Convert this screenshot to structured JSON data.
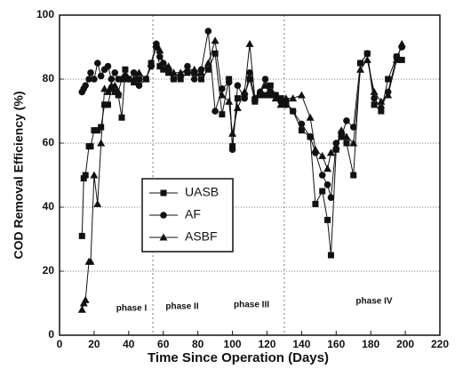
{
  "chart_data": {
    "type": "line",
    "xlabel": "Time Since Operation (Days)",
    "ylabel": "COD Removal Efficiency (%)",
    "x": [
      13,
      14,
      15,
      17,
      18,
      20,
      22,
      24,
      26,
      28,
      30,
      32,
      34,
      36,
      38,
      40,
      43,
      46,
      50,
      53,
      56,
      58,
      60,
      63,
      66,
      70,
      74,
      78,
      82,
      86,
      90,
      94,
      98,
      100,
      103,
      107,
      110,
      113,
      116,
      119,
      122,
      125,
      128,
      131,
      135,
      140,
      145,
      148,
      152,
      155,
      157,
      160,
      163,
      166,
      170,
      174,
      178,
      182,
      186,
      190,
      195,
      198
    ],
    "series": [
      {
        "name": "UASB",
        "color": "#111111",
        "marker": "square",
        "values": [
          31,
          49,
          50,
          59,
          59,
          64,
          64,
          65,
          72,
          72,
          77,
          76,
          75,
          68,
          83,
          80,
          79,
          80,
          80,
          85,
          90,
          84,
          83,
          82,
          80,
          80,
          82,
          82,
          80,
          83,
          88,
          69,
          80,
          59,
          74,
          75,
          80,
          73,
          75,
          75,
          78,
          75,
          74,
          73,
          70,
          64,
          62,
          41,
          45,
          36,
          25,
          58,
          63,
          60,
          50,
          85,
          88,
          72,
          70,
          80,
          87,
          86
        ]
      },
      {
        "name": "AF",
        "color": "#111111",
        "marker": "circle",
        "values": [
          76,
          77,
          78,
          80,
          82,
          80,
          85,
          81,
          83,
          84,
          80,
          82,
          80,
          80,
          81,
          80,
          82,
          78,
          80,
          84,
          91,
          87,
          85,
          83,
          80,
          81,
          84,
          80,
          83,
          95,
          70,
          77,
          79,
          58,
          78,
          74,
          82,
          74,
          76,
          80,
          76,
          75,
          73,
          72,
          70,
          66,
          62,
          57,
          50,
          47,
          43,
          60,
          62,
          67,
          65,
          85,
          88,
          74,
          71,
          76,
          87,
          90
        ]
      },
      {
        "name": "ASBF",
        "color": "#111111",
        "marker": "triangle",
        "values": [
          8,
          10,
          11,
          23,
          23,
          50,
          41,
          60,
          77,
          76,
          78,
          78,
          76,
          80,
          80,
          80,
          80,
          82,
          80,
          85,
          91,
          89,
          85,
          84,
          82,
          82,
          83,
          83,
          82,
          85,
          92,
          75,
          73,
          63,
          71,
          76,
          91,
          74,
          76,
          78,
          75,
          74,
          72,
          74,
          74,
          75,
          68,
          58,
          56,
          52,
          57,
          59,
          64,
          62,
          60,
          83,
          86,
          76,
          73,
          75,
          86,
          91
        ]
      }
    ],
    "annotations": [
      "phase I",
      "phase II",
      "phase III",
      "phase IV"
    ],
    "phase_boundaries": [
      54,
      130
    ],
    "xlim": [
      0,
      220
    ],
    "xticks": [
      0,
      20,
      40,
      60,
      80,
      100,
      120,
      140,
      160,
      180,
      200,
      220
    ],
    "ylim": [
      0,
      100
    ],
    "yticks": [
      0,
      20,
      40,
      60,
      80,
      100
    ],
    "grid": true,
    "legend": "center left"
  }
}
